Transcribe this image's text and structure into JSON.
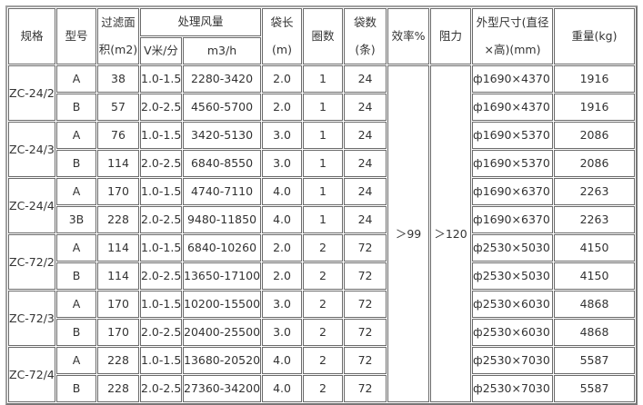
{
  "header": {
    "spec": "规格",
    "model": "型号",
    "filter_area": "过滤面积(m2)",
    "airflow": "处理风量",
    "airflow_speed": "V米/分",
    "airflow_volume": "m3/h",
    "bag_length": "袋长(m)",
    "rings": "圈数",
    "bag_count": "袋数(条)",
    "efficiency": "效率%",
    "resistance": "阻力",
    "dimensions": "外型尺寸(直径×高)(mm)",
    "weight": "重量(kg)"
  },
  "efficiency_value": "＞99",
  "resistance_value": "＞120",
  "groups": [
    {
      "spec": "ZC-24/2",
      "rows": [
        {
          "model": "A",
          "area": "38",
          "speed": "1.0-1.5",
          "volume": "2280-3420",
          "length": "2.0",
          "rings": "1",
          "bags": "24",
          "dims": "ф1690×4370",
          "weight": "1916"
        },
        {
          "model": "B",
          "area": "57",
          "speed": "2.0-2.5",
          "volume": "4560-5700",
          "length": "2.0",
          "rings": "1",
          "bags": "24",
          "dims": "ф1690×4370",
          "weight": "1916"
        }
      ]
    },
    {
      "spec": "ZC-24/3",
      "rows": [
        {
          "model": "A",
          "area": "76",
          "speed": "1.0-1.5",
          "volume": "3420-5130",
          "length": "3.0",
          "rings": "1",
          "bags": "24",
          "dims": "ф1690×5370",
          "weight": "2086"
        },
        {
          "model": "B",
          "area": "114",
          "speed": "2.0-2.5",
          "volume": "6840-8550",
          "length": "3.0",
          "rings": "1",
          "bags": "24",
          "dims": "ф1690×5370",
          "weight": "2086"
        }
      ]
    },
    {
      "spec": "ZC-24/4",
      "rows": [
        {
          "model": "A",
          "area": "170",
          "speed": "1.0-1.5",
          "volume": "4740-7110",
          "length": "4.0",
          "rings": "1",
          "bags": "24",
          "dims": "ф1690×6370",
          "weight": "2263"
        },
        {
          "model": "3B",
          "area": "228",
          "speed": "2.0-2.5",
          "volume": "9480-11850",
          "length": "4.0",
          "rings": "1",
          "bags": "24",
          "dims": "ф1690×6370",
          "weight": "2263"
        }
      ]
    },
    {
      "spec": "ZC-72/2",
      "rows": [
        {
          "model": "A",
          "area": "114",
          "speed": "1.0-1.5",
          "volume": "6840-10260",
          "length": "2.0",
          "rings": "2",
          "bags": "72",
          "dims": "ф2530×5030",
          "weight": "4150"
        },
        {
          "model": "B",
          "area": "114",
          "speed": "2.0-2.5",
          "volume": "13650-17100",
          "length": "2.0",
          "rings": "2",
          "bags": "72",
          "dims": "ф2530×5030",
          "weight": "4150"
        }
      ]
    },
    {
      "spec": "ZC-72/3",
      "rows": [
        {
          "model": "A",
          "area": "170",
          "speed": "1.0-1.5",
          "volume": "10200-15500",
          "length": "3.0",
          "rings": "2",
          "bags": "72",
          "dims": "ф2530×6030",
          "weight": "4868"
        },
        {
          "model": "B",
          "area": "170",
          "speed": "2.0-2.5",
          "volume": "20400-25500",
          "length": "3.0",
          "rings": "2",
          "bags": "72",
          "dims": "ф2530×6030",
          "weight": "4868"
        }
      ]
    },
    {
      "spec": "ZC-72/4",
      "rows": [
        {
          "model": "A",
          "area": "228",
          "speed": "1.0-1.5",
          "volume": "13680-20520",
          "length": "4.0",
          "rings": "2",
          "bags": "72",
          "dims": "ф2530×7030",
          "weight": "5587"
        },
        {
          "model": "B",
          "area": "228",
          "speed": "2.0-2.5",
          "volume": "27360-34200",
          "length": "4.0",
          "rings": "2",
          "bags": "72",
          "dims": "ф2530×7030",
          "weight": "5587"
        }
      ]
    }
  ]
}
